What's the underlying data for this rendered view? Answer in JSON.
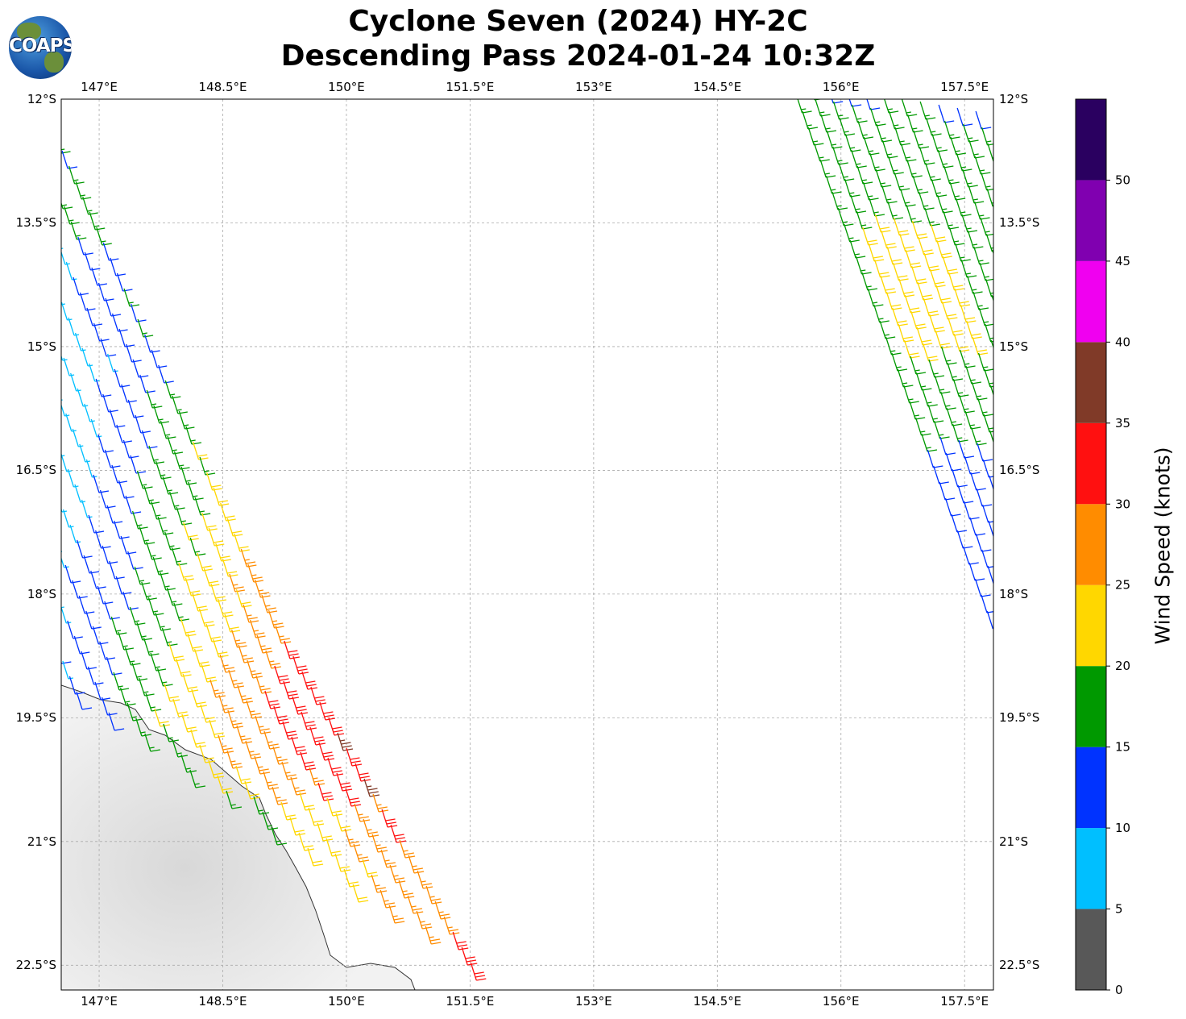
{
  "title_line1": "Cyclone Seven (2024) HY-2C",
  "title_line2": "Descending Pass 2024-01-24 10:32Z",
  "logo_text": "COAPS",
  "map": {
    "lon_range": [
      146.54,
      157.85
    ],
    "lat_range": [
      -22.8,
      -12.0
    ],
    "lon_ticks": [
      {
        "v": 147,
        "label": "147°E"
      },
      {
        "v": 148.5,
        "label": "148.5°E"
      },
      {
        "v": 150,
        "label": "150°E"
      },
      {
        "v": 151.5,
        "label": "151.5°E"
      },
      {
        "v": 153,
        "label": "153°E"
      },
      {
        "v": 154.5,
        "label": "154.5°E"
      },
      {
        "v": 156,
        "label": "156°E"
      },
      {
        "v": 157.5,
        "label": "157.5°E"
      }
    ],
    "lat_ticks": [
      {
        "v": -12,
        "label": "12°S"
      },
      {
        "v": -13.5,
        "label": "13.5°S"
      },
      {
        "v": -15,
        "label": "15°S"
      },
      {
        "v": -16.5,
        "label": "16.5°S"
      },
      {
        "v": -18,
        "label": "18°S"
      },
      {
        "v": -19.5,
        "label": "19.5°S"
      },
      {
        "v": -21,
        "label": "21°S"
      },
      {
        "v": -22.5,
        "label": "22.5°S"
      }
    ]
  },
  "colorbar": {
    "label": "Wind Speed (knots)",
    "ticks": [
      "0",
      "5",
      "10",
      "15",
      "20",
      "25",
      "30",
      "35",
      "40",
      "45",
      "50"
    ],
    "colors": [
      "#585858",
      "#00bfff",
      "#0033ff",
      "#009900",
      "#ffd700",
      "#ff8c00",
      "#ff1010",
      "#803a28",
      "#f000f0",
      "#8000b0",
      "#2a0060"
    ]
  }
}
